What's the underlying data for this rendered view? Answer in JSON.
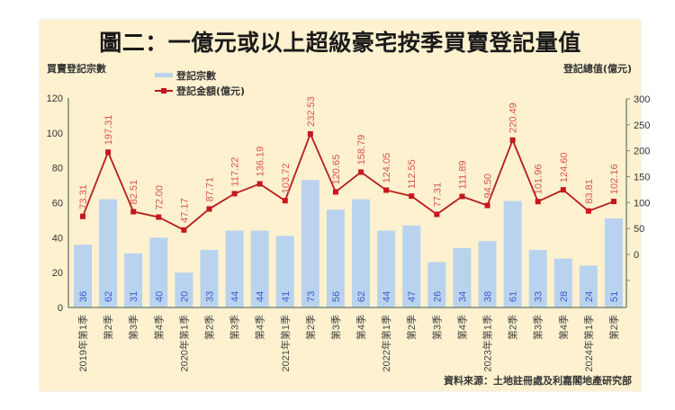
{
  "chart_data": {
    "type": "bar+line",
    "title": "圖二：一億元或以上超級豪宅按季買賣登記量值",
    "ylabel_left": "買賣登記宗數",
    "ylabel_right": "登記總值(億元)",
    "source": "資料來源：土地註冊處及利嘉閣地產研究部",
    "legend": [
      "登記宗數",
      "登記金額(億元)"
    ],
    "categories": [
      "2019年第1季",
      "第2季",
      "第3季",
      "第4季",
      "2020年第1季",
      "第2季",
      "第3季",
      "第4季",
      "2021年第1季",
      "第2季",
      "第3季",
      "第4季",
      "2022年第1季",
      "第2季",
      "第3季",
      "第4季",
      "2023年第1季",
      "第2季",
      "第3季",
      "第4季",
      "2024年第1季",
      "第2季"
    ],
    "series": [
      {
        "name": "登記宗數",
        "type": "bar",
        "axis": "left",
        "values": [
          36,
          62,
          31,
          40,
          20,
          33,
          44,
          44,
          41,
          73,
          56,
          62,
          44,
          47,
          26,
          34,
          38,
          61,
          33,
          28,
          24,
          51
        ]
      },
      {
        "name": "登記金額(億元)",
        "type": "line",
        "axis": "right",
        "values": [
          73.31,
          197.31,
          82.51,
          72.0,
          47.17,
          87.71,
          117.22,
          136.19,
          103.72,
          232.53,
          120.65,
          158.79,
          124.05,
          112.55,
          77.31,
          111.89,
          94.5,
          220.49,
          101.96,
          124.6,
          83.81,
          102.16
        ]
      }
    ],
    "value_labels_line": [
      "73.31",
      "197.31",
      "82.51",
      "72.00",
      "47.17",
      "87.71",
      "117.22",
      "136.19",
      "103.72",
      "232.53",
      "120.65",
      "158.79",
      "124.05",
      "112.55",
      "77.31",
      "111.89",
      "94.50",
      "220.49",
      "101.96",
      "124.60",
      "83.81",
      "102.16"
    ],
    "ylim_left": [
      0,
      120
    ],
    "yticks_left": [
      0,
      20,
      40,
      60,
      80,
      100,
      120
    ],
    "ylim_right": [
      -50,
      300
    ],
    "yticks_right": [
      0,
      50,
      100,
      150,
      200,
      250,
      300
    ],
    "grid": false,
    "legend_position": "top-left"
  },
  "colors": {
    "background": "#fdf1cf",
    "bar": "#b9d3ee",
    "line": "#b81c1c",
    "marker": "#c8161d",
    "line_label": "#d9534f",
    "bar_label": "#3a5bcf",
    "axis": "#7d8a7a"
  }
}
